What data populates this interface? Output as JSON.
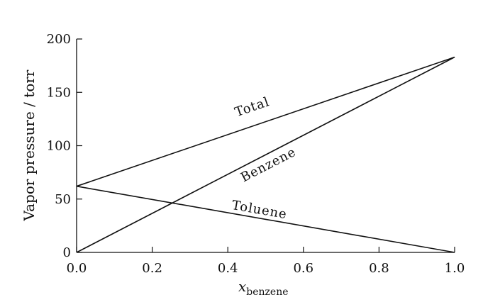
{
  "chart_data": {
    "type": "line",
    "xlabel_main": "x",
    "xlabel_sub": "benzene",
    "ylabel": "Vapor pressure / torr",
    "xlim": [
      0.0,
      1.0
    ],
    "ylim": [
      0,
      200
    ],
    "x_ticks": [
      0.0,
      0.2,
      0.4,
      0.6,
      0.8,
      1.0
    ],
    "x_tick_labels": [
      "0.0",
      "0.2",
      "0.4",
      "0.6",
      "0.8",
      "1.0"
    ],
    "y_ticks": [
      0,
      50,
      100,
      150,
      200
    ],
    "y_tick_labels": [
      "0",
      "50",
      "100",
      "150",
      "200"
    ],
    "grid": false,
    "series": [
      {
        "name": "Total",
        "x": [
          0.0,
          1.0
        ],
        "y": [
          62,
          183
        ]
      },
      {
        "name": "Benzene",
        "x": [
          0.0,
          1.0
        ],
        "y": [
          0,
          183
        ]
      },
      {
        "name": "Toluene",
        "x": [
          0.0,
          1.0
        ],
        "y": [
          62,
          0
        ]
      }
    ]
  }
}
